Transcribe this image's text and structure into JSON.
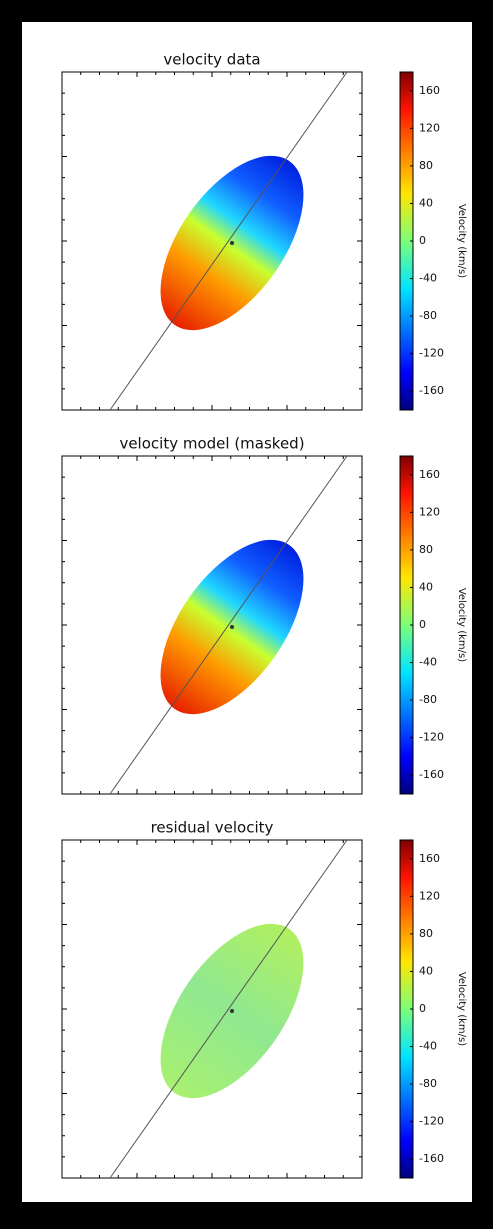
{
  "chart_data": [
    {
      "type": "velocity-map",
      "title": "velocity data",
      "colorbar_label": "Velocity (km/s)",
      "ylim": [
        -180,
        180
      ],
      "yticks": [
        -160,
        -120,
        -80,
        -40,
        0,
        40,
        80,
        120,
        160
      ]
    },
    {
      "type": "velocity-map",
      "title": "velocity model (masked)",
      "colorbar_label": "Velocity (km/s)",
      "ylim": [
        -180,
        180
      ],
      "yticks": [
        -160,
        -120,
        -80,
        -40,
        0,
        40,
        80,
        120,
        160
      ]
    },
    {
      "type": "velocity-map",
      "title": "residual velocity",
      "colorbar_label": "Velocity (km/s)",
      "ylim": [
        -180,
        180
      ],
      "yticks": [
        -160,
        -120,
        -80,
        -40,
        0,
        40,
        80,
        120,
        160
      ]
    }
  ]
}
